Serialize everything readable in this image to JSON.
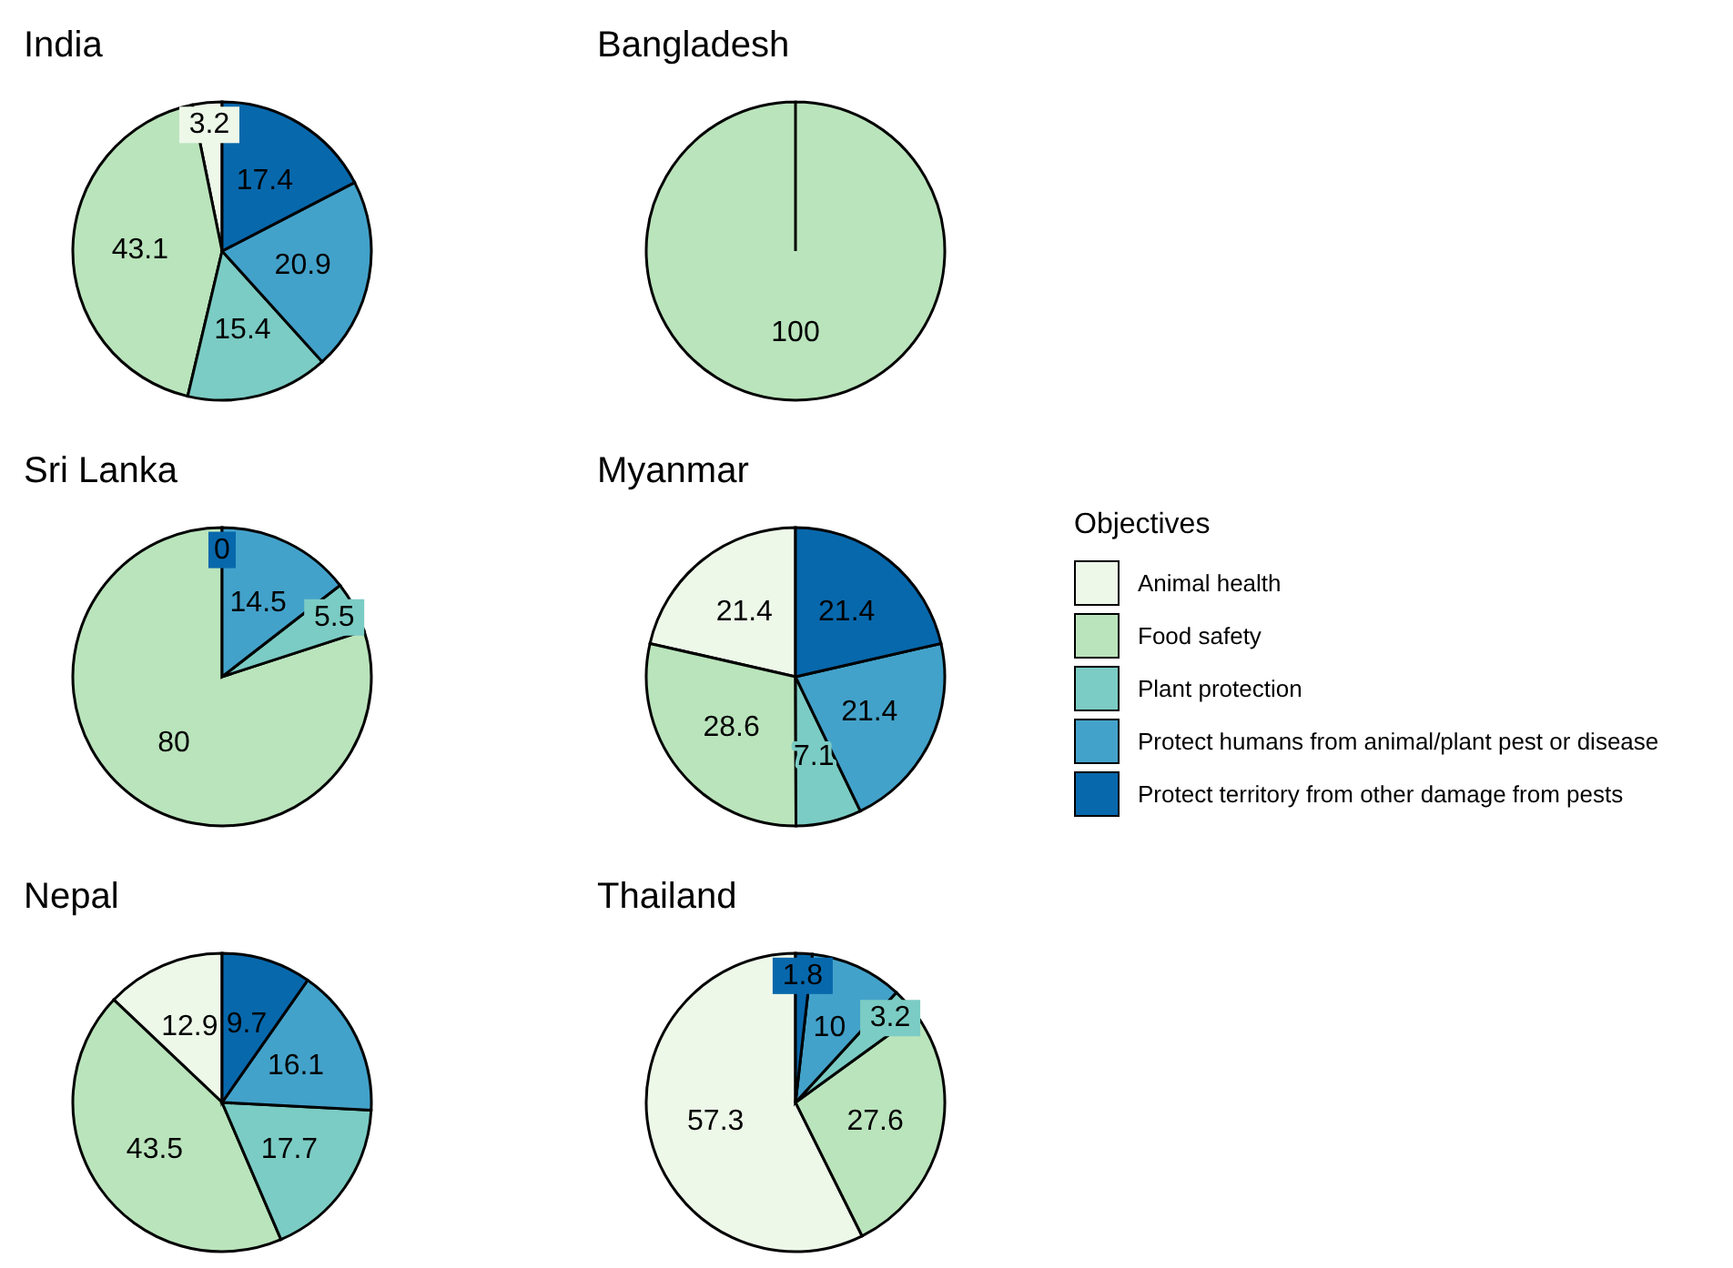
{
  "chart_data": [
    {
      "type": "pie",
      "title": "India",
      "categories": [
        "Animal health",
        "Food safety",
        "Plant protection",
        "Protect humans from animal/plant pest or disease",
        "Protect territory from other damage from pests"
      ],
      "values": [
        3.2,
        43.1,
        15.4,
        20.9,
        17.4
      ],
      "colors": [
        "#edf8e9",
        "#bae4bc",
        "#7bccc4",
        "#43a2ca",
        "#0868ac"
      ],
      "data_labels": true,
      "legend": "right",
      "legend_title": "Objectives"
    },
    {
      "type": "pie",
      "title": "Bangladesh",
      "categories": [
        null,
        null,
        null,
        null,
        null
      ],
      "values": [
        null,
        100,
        null,
        null,
        null
      ],
      "colors": [
        "#edf8e9",
        "#bae4bc",
        "#7bccc4",
        "#43a2ca",
        "#0868ac"
      ],
      "data_labels": true
    },
    {
      "type": "pie",
      "title": "Sri Lanka",
      "categories": [
        null,
        null,
        null,
        null,
        null
      ],
      "values": [
        null,
        80,
        5.5,
        14.5,
        0
      ],
      "value_labels": [
        null,
        "80",
        "5.5",
        "14.5",
        "0"
      ],
      "colors": [
        "#edf8e9",
        "#bae4bc",
        "#7bccc4",
        "#43a2ca",
        "#0868ac"
      ]
    },
    {
      "type": "pie",
      "title": "Myanmar",
      "categories": [
        null,
        null,
        null,
        null,
        null
      ],
      "values": [
        21.4,
        28.6,
        7.1,
        21.4,
        21.4
      ],
      "colors": [
        "#edf8e9",
        "#bae4bc",
        "#7bccc4",
        "#43a2ca",
        "#0868ac"
      ],
      "data_labels": true
    },
    {
      "type": "pie",
      "title": "Nepal",
      "categories": [
        null,
        null,
        null,
        null,
        null
      ],
      "values": [
        12.9,
        43.5,
        17.7,
        16.1,
        9.7
      ],
      "colors": [
        "#edf8e9",
        "#bae4bc",
        "#7bccc4",
        "#43a2ca",
        "#0868ac"
      ],
      "data_labels": true
    },
    {
      "type": "pie",
      "title": "Thailand",
      "categories": [
        null,
        null,
        null,
        null,
        null
      ],
      "values": [
        57.3,
        27.6,
        3.2,
        10,
        1.8
      ],
      "colors": [
        "#edf8e9",
        "#bae4bc",
        "#7bccc4",
        "#43a2ca",
        "#0868ac"
      ],
      "data_labels": true
    }
  ]
}
